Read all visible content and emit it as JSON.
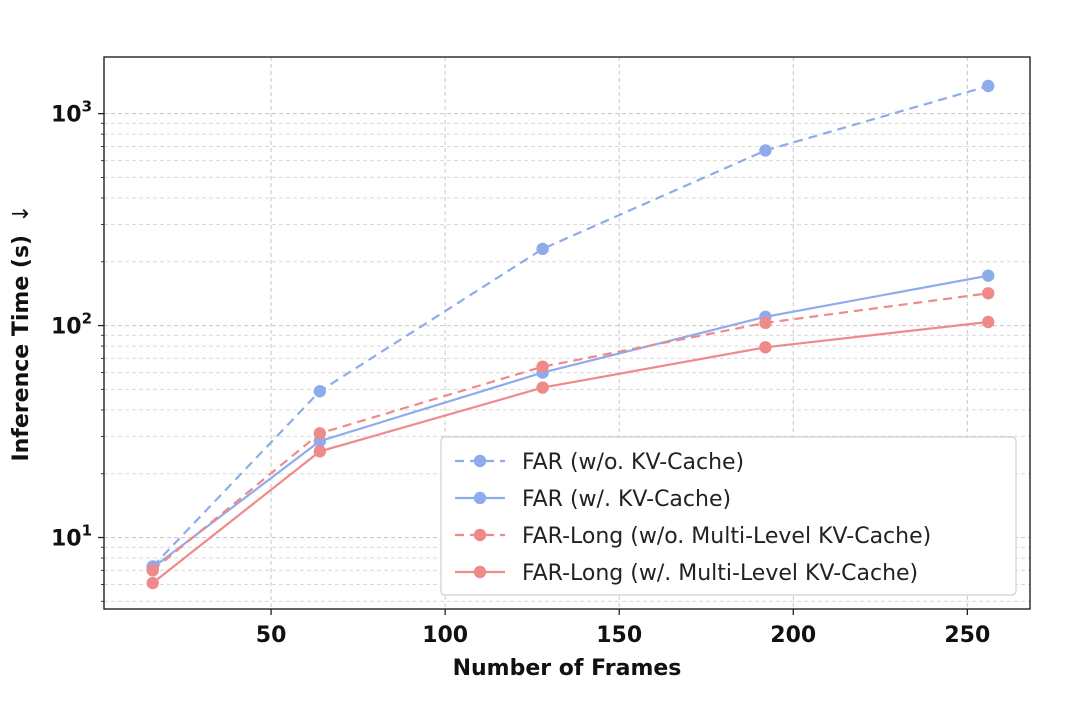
{
  "chart_data": {
    "type": "line",
    "title": "",
    "xlabel": "Number of Frames",
    "ylabel": "Inference Time (s)",
    "ylabel_arrow": "↓",
    "y_scale": "log",
    "xlim": [
      2,
      268
    ],
    "ylim": [
      4.6,
      1850
    ],
    "x_ticks": [
      50,
      100,
      150,
      200,
      250
    ],
    "y_ticks": [
      {
        "value": 10,
        "base": "10",
        "exp": "1"
      },
      {
        "value": 100,
        "base": "10",
        "exp": "2"
      },
      {
        "value": 1000,
        "base": "10",
        "exp": "3"
      }
    ],
    "grid": true,
    "legend_position": "lower-right",
    "series": [
      {
        "name": "FAR (w/o. KV-Cache)",
        "color": "#8eacec",
        "dashed": true,
        "x": [
          16,
          64,
          128,
          192,
          256
        ],
        "y": [
          7.3,
          49,
          230,
          670,
          1350
        ]
      },
      {
        "name": "FAR (w/. KV-Cache)",
        "color": "#8eacec",
        "dashed": false,
        "x": [
          16,
          64,
          128,
          192,
          256
        ],
        "y": [
          7.2,
          28.5,
          60,
          110,
          172
        ]
      },
      {
        "name": "FAR-Long (w/o. Multi-Level KV-Cache)",
        "color": "#ef8a8a",
        "dashed": true,
        "x": [
          16,
          64,
          128,
          192,
          256
        ],
        "y": [
          7.0,
          31,
          64,
          103,
          142
        ]
      },
      {
        "name": "FAR-Long (w/. Multi-Level KV-Cache)",
        "color": "#ef8a8a",
        "dashed": false,
        "x": [
          16,
          64,
          128,
          192,
          256
        ],
        "y": [
          6.1,
          25.5,
          51,
          79,
          104
        ]
      }
    ]
  }
}
